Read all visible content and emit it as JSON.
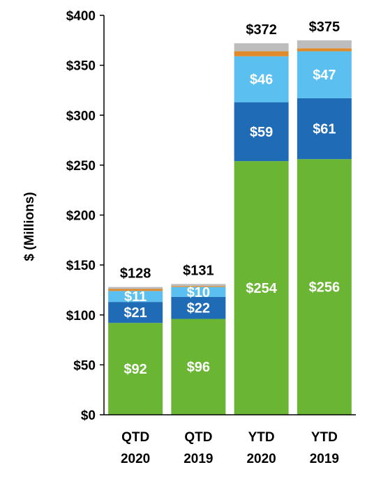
{
  "chart_data": {
    "type": "bar",
    "stacked": true,
    "ylabel": "$ (Millions)",
    "xlabel": "",
    "ylim": [
      0,
      400
    ],
    "yticks": [
      "$0",
      "$50",
      "$100",
      "$150",
      "$200",
      "$250",
      "$300",
      "$350",
      "$400"
    ],
    "categories": [
      [
        "QTD",
        "2020"
      ],
      [
        "QTD",
        "2019"
      ],
      [
        "YTD",
        "2020"
      ],
      [
        "YTD",
        "2019"
      ]
    ],
    "totals": [
      "$128",
      "$131",
      "$372",
      "$375"
    ],
    "series": [
      {
        "color": "#6ab534",
        "values": [
          92,
          96,
          254,
          256
        ],
        "labels": [
          "$92",
          "$96",
          "$254",
          "$256"
        ]
      },
      {
        "color": "#1f6bb5",
        "values": [
          21,
          22,
          59,
          61
        ],
        "labels": [
          "$21",
          "$22",
          "$59",
          "$61"
        ]
      },
      {
        "color": "#5bc0ef",
        "values": [
          11,
          10,
          46,
          47
        ],
        "labels": [
          "$11",
          "$10",
          "$46",
          "$47"
        ]
      },
      {
        "color": "#e08a2b",
        "values": [
          2,
          1,
          5,
          3
        ],
        "labels": [
          "",
          "",
          "",
          ""
        ]
      },
      {
        "color": "#bdbdbd",
        "values": [
          2,
          2,
          8,
          8
        ],
        "labels": [
          "",
          "",
          "",
          ""
        ]
      }
    ]
  }
}
